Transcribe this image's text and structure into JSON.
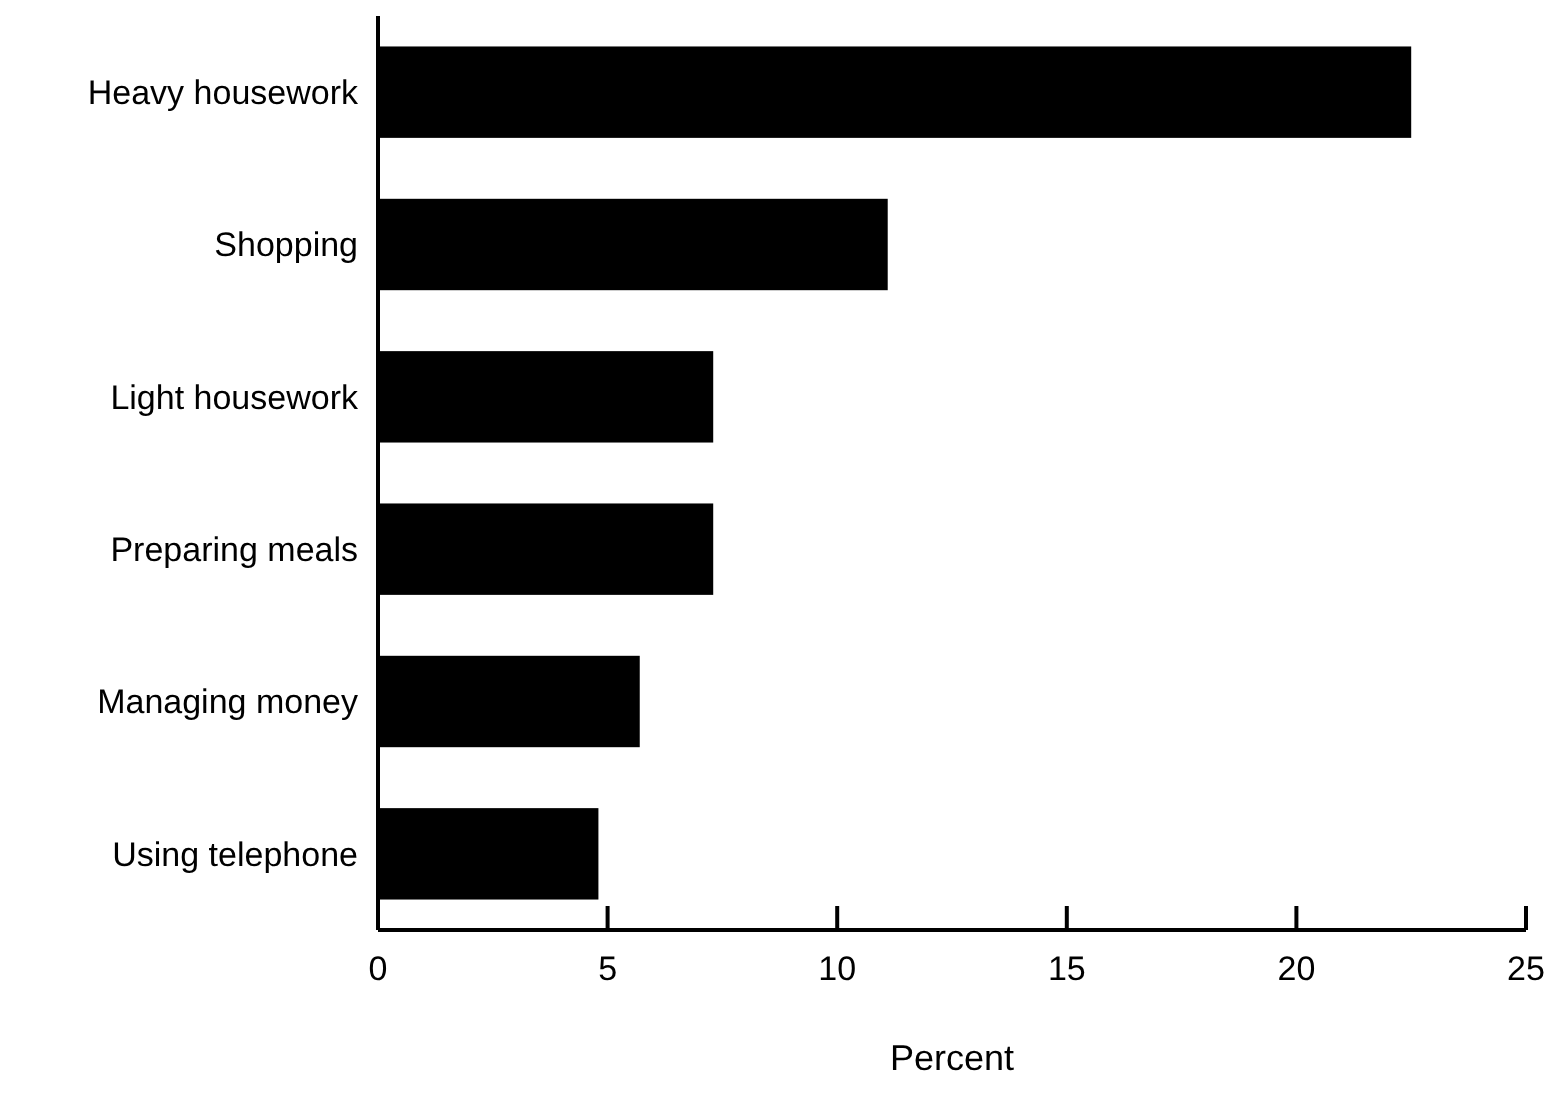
{
  "chart_data": {
    "type": "bar",
    "orientation": "horizontal",
    "xlabel": "Percent",
    "categories": [
      "Heavy housework",
      "Shopping",
      "Light housework",
      "Preparing meals",
      "Managing money",
      "Using telephone"
    ],
    "values": [
      22.5,
      11.1,
      7.3,
      7.3,
      5.7,
      4.8
    ],
    "color": "#000000",
    "xlim": [
      0,
      25
    ],
    "xticks": [
      0,
      5,
      10,
      15,
      20,
      25
    ],
    "grid": false
  }
}
